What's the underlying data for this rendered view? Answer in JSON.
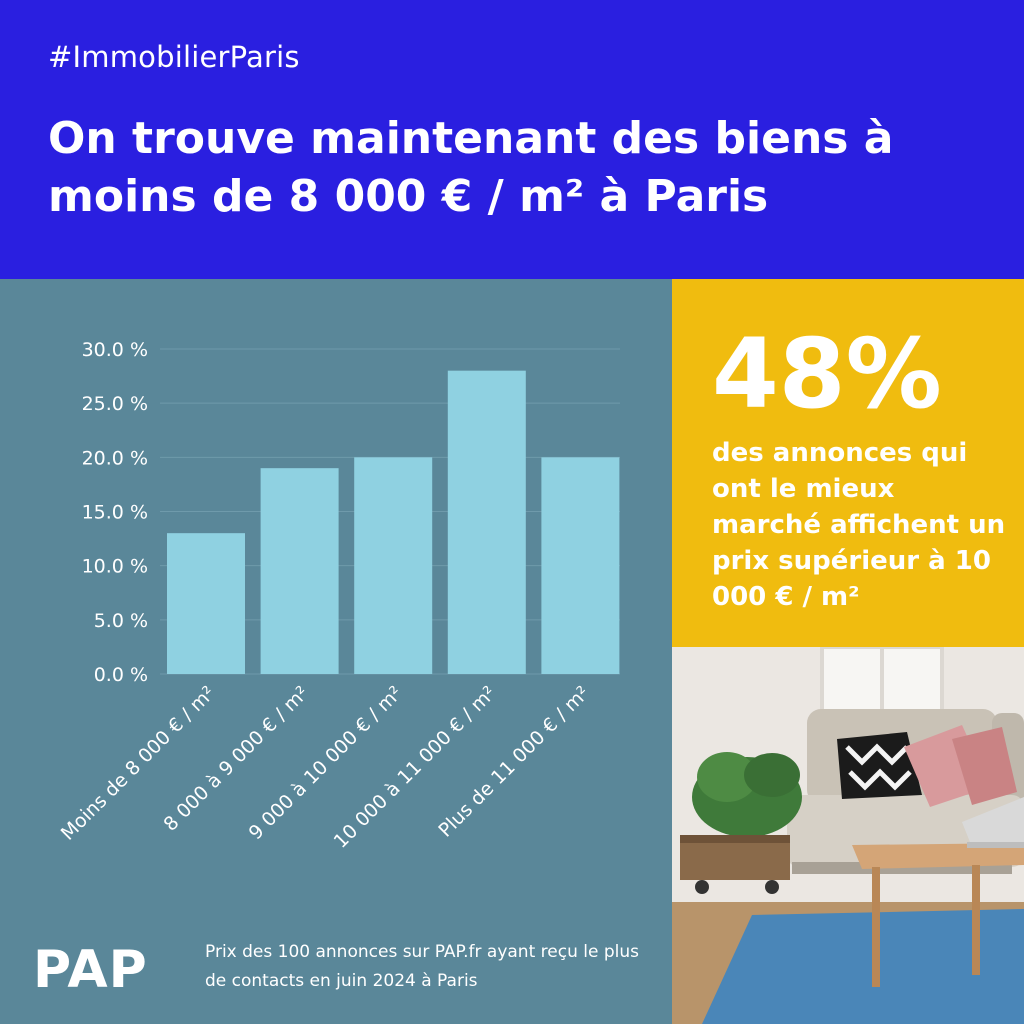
{
  "header": {
    "hashtag": "#ImmobilierParis",
    "headline": "On trouve maintenant des biens à moins de 8 000 € / m² à Paris"
  },
  "stat": {
    "big": "48%",
    "text": "des annonces qui ont le mieux marché affichent un prix supérieur à 10 000 € / m²"
  },
  "footer": {
    "logo": "PAP",
    "source": "Prix des 100 annonces sur PAP.fr ayant reçu le plus de contacts en juin 2024 à Paris"
  },
  "colors": {
    "header_bg": "#2a1fe0",
    "chart_bg": "#5a8799",
    "bar": "#8fd1e1",
    "stat_bg": "#f0bc0f"
  },
  "chart_data": {
    "type": "bar",
    "categories": [
      "Moins de 8 000 € / m²",
      "8 000 à 9 000 € / m²",
      "9 000 à 10 000 € / m²",
      "10 000 à 11 000 € / m²",
      "Plus de 11 000 € / m²"
    ],
    "values": [
      13,
      19,
      20,
      28,
      20
    ],
    "ylim": [
      0,
      30
    ],
    "yticks": [
      "0.0 %",
      "5.0 %",
      "10.0 %",
      "15.0 %",
      "20.0 %",
      "25.0 %",
      "30.0 %"
    ],
    "ytick_values": [
      0,
      5,
      10,
      15,
      20,
      25,
      30
    ],
    "grid": true,
    "xlabel": "",
    "ylabel": ""
  }
}
